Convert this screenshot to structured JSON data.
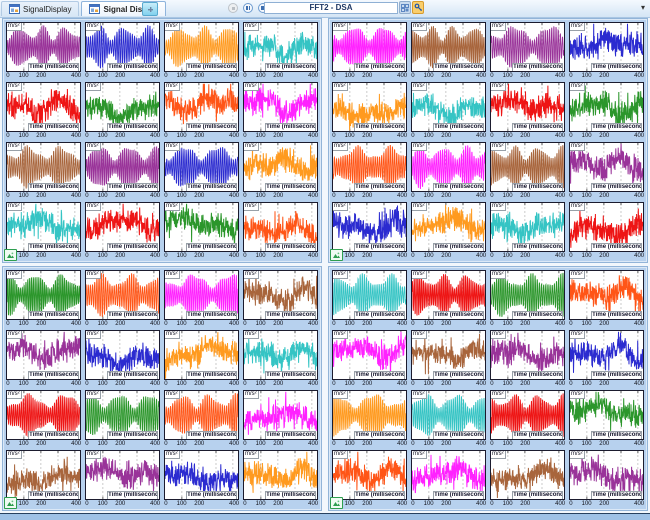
{
  "header": {
    "tabs": [
      {
        "label": "SignalDisplay",
        "active": false
      },
      {
        "label": "Signal Display",
        "active": true
      }
    ],
    "transport": {
      "buttons": [
        {
          "name": "record",
          "state": "disabled"
        },
        {
          "name": "pause",
          "state": "enabled"
        },
        {
          "name": "stop",
          "state": "enabled"
        }
      ]
    },
    "measurement_selector": {
      "value": "FFT2 - DSA"
    },
    "window_buttons": [
      {
        "name": "layout",
        "icon": "grid-plus-icon"
      },
      {
        "name": "key",
        "icon": "key-icon",
        "active": true
      }
    ],
    "dropdown_arrow": "▾"
  },
  "plot": {
    "ylabel": "m/s²",
    "xlabel": "Time (millisecond)",
    "xticks": [
      "0",
      "100",
      "200",
      "400"
    ],
    "tick_positions": [
      0.025,
      0.235,
      0.47,
      0.935
    ],
    "grid_positions": [
      0.232,
      0.465,
      0.698,
      0.93
    ],
    "x_range_ms": [
      0,
      430
    ],
    "grid_color": "#A8A8A8",
    "border_color": "#1b1b2e"
  },
  "palette": {
    "purple": "#993399",
    "blue": "#2B2BD0",
    "orange": "#FF9A1F",
    "cyan": "#35C4C4",
    "red": "#EE1515",
    "green": "#2B962B",
    "orangered": "#FF5517",
    "magenta": "#FF22FF",
    "brown": "#A8653C"
  },
  "panels": [
    {
      "name": "top-left",
      "plots": [
        {
          "color": "purple",
          "wave": "sine"
        },
        {
          "color": "blue",
          "wave": "sine"
        },
        {
          "color": "orange",
          "wave": "sine"
        },
        {
          "color": "cyan",
          "wave": "noise"
        },
        {
          "color": "red",
          "wave": "noise"
        },
        {
          "color": "green",
          "wave": "noise"
        },
        {
          "color": "orangered",
          "wave": "noise"
        },
        {
          "color": "magenta",
          "wave": "noise"
        },
        {
          "color": "brown",
          "wave": "sine"
        },
        {
          "color": "purple",
          "wave": "sine"
        },
        {
          "color": "blue",
          "wave": "sine"
        },
        {
          "color": "orange",
          "wave": "noise"
        },
        {
          "color": "cyan",
          "wave": "noise"
        },
        {
          "color": "red",
          "wave": "noise"
        },
        {
          "color": "green",
          "wave": "noise"
        },
        {
          "color": "orangered",
          "wave": "noise"
        }
      ]
    },
    {
      "name": "top-right",
      "plots": [
        {
          "color": "magenta",
          "wave": "sine"
        },
        {
          "color": "brown",
          "wave": "sine"
        },
        {
          "color": "purple",
          "wave": "sine"
        },
        {
          "color": "blue",
          "wave": "noise"
        },
        {
          "color": "orange",
          "wave": "noise"
        },
        {
          "color": "cyan",
          "wave": "noise"
        },
        {
          "color": "red",
          "wave": "noise"
        },
        {
          "color": "green",
          "wave": "noise"
        },
        {
          "color": "orangered",
          "wave": "sine"
        },
        {
          "color": "magenta",
          "wave": "sine"
        },
        {
          "color": "brown",
          "wave": "sine"
        },
        {
          "color": "purple",
          "wave": "noise"
        },
        {
          "color": "blue",
          "wave": "noise"
        },
        {
          "color": "orange",
          "wave": "noise"
        },
        {
          "color": "cyan",
          "wave": "noise"
        },
        {
          "color": "red",
          "wave": "noise"
        }
      ]
    },
    {
      "name": "bottom-left",
      "plots": [
        {
          "color": "green",
          "wave": "sine"
        },
        {
          "color": "orangered",
          "wave": "sine"
        },
        {
          "color": "magenta",
          "wave": "sine"
        },
        {
          "color": "brown",
          "wave": "noise"
        },
        {
          "color": "purple",
          "wave": "noise"
        },
        {
          "color": "blue",
          "wave": "noise"
        },
        {
          "color": "orange",
          "wave": "noise"
        },
        {
          "color": "cyan",
          "wave": "noise"
        },
        {
          "color": "red",
          "wave": "sine"
        },
        {
          "color": "green",
          "wave": "sine"
        },
        {
          "color": "orangered",
          "wave": "sine"
        },
        {
          "color": "magenta",
          "wave": "noise"
        },
        {
          "color": "brown",
          "wave": "noise"
        },
        {
          "color": "purple",
          "wave": "noise"
        },
        {
          "color": "blue",
          "wave": "noise"
        },
        {
          "color": "orange",
          "wave": "noise"
        }
      ]
    },
    {
      "name": "bottom-right",
      "plots": [
        {
          "color": "cyan",
          "wave": "sine"
        },
        {
          "color": "red",
          "wave": "sine"
        },
        {
          "color": "green",
          "wave": "sine"
        },
        {
          "color": "orangered",
          "wave": "noise"
        },
        {
          "color": "magenta",
          "wave": "noise"
        },
        {
          "color": "brown",
          "wave": "noise"
        },
        {
          "color": "purple",
          "wave": "noise"
        },
        {
          "color": "blue",
          "wave": "noise"
        },
        {
          "color": "orange",
          "wave": "sine"
        },
        {
          "color": "cyan",
          "wave": "sine"
        },
        {
          "color": "red",
          "wave": "sine"
        },
        {
          "color": "green",
          "wave": "noise"
        },
        {
          "color": "orangered",
          "wave": "noise"
        },
        {
          "color": "magenta",
          "wave": "noise"
        },
        {
          "color": "brown",
          "wave": "noise"
        },
        {
          "color": "purple",
          "wave": "noise"
        }
      ]
    }
  ]
}
